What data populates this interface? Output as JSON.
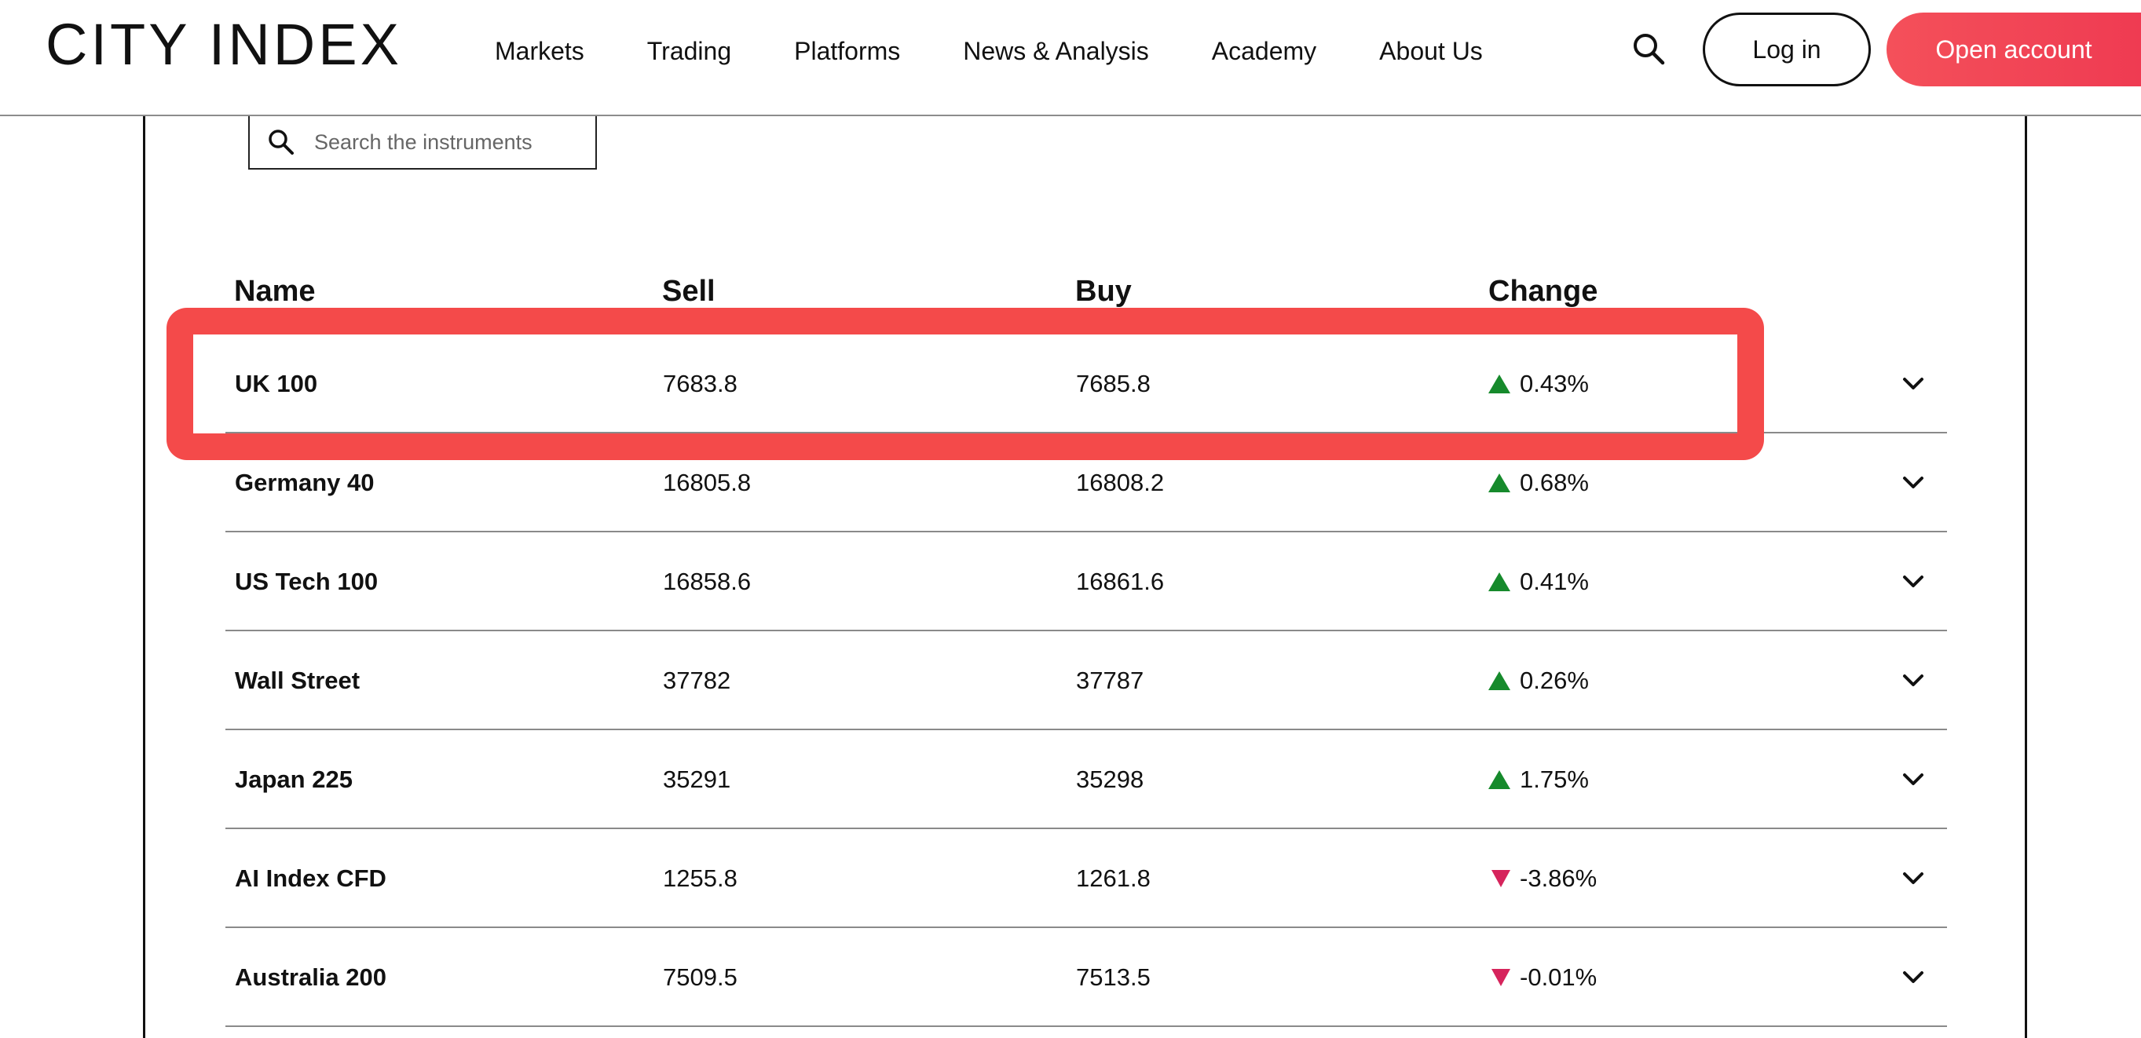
{
  "header": {
    "logo": "CITY INDEX",
    "nav": [
      "Markets",
      "Trading",
      "Platforms",
      "News & Analysis",
      "Academy",
      "About Us"
    ],
    "login_label": "Log in",
    "open_account_label": "Open account"
  },
  "search": {
    "placeholder": "Search the instruments"
  },
  "table": {
    "headers": {
      "name": "Name",
      "sell": "Sell",
      "buy": "Buy",
      "change": "Change"
    },
    "rows": [
      {
        "name": "UK 100",
        "sell": "7683.8",
        "buy": "7685.8",
        "change": "0.43%",
        "direction": "up"
      },
      {
        "name": "Germany 40",
        "sell": "16805.8",
        "buy": "16808.2",
        "change": "0.68%",
        "direction": "up"
      },
      {
        "name": "US Tech 100",
        "sell": "16858.6",
        "buy": "16861.6",
        "change": "0.41%",
        "direction": "up"
      },
      {
        "name": "Wall Street",
        "sell": "37782",
        "buy": "37787",
        "change": "0.26%",
        "direction": "up"
      },
      {
        "name": "Japan 225",
        "sell": "35291",
        "buy": "35298",
        "change": "1.75%",
        "direction": "up"
      },
      {
        "name": "AI Index CFD",
        "sell": "1255.8",
        "buy": "1261.8",
        "change": "-3.86%",
        "direction": "down"
      },
      {
        "name": "Australia 200",
        "sell": "7509.5",
        "buy": "7513.5",
        "change": "-0.01%",
        "direction": "down"
      }
    ]
  },
  "colors": {
    "accent": "#f44a4a",
    "up": "#168a2c",
    "down": "#d6245c"
  }
}
